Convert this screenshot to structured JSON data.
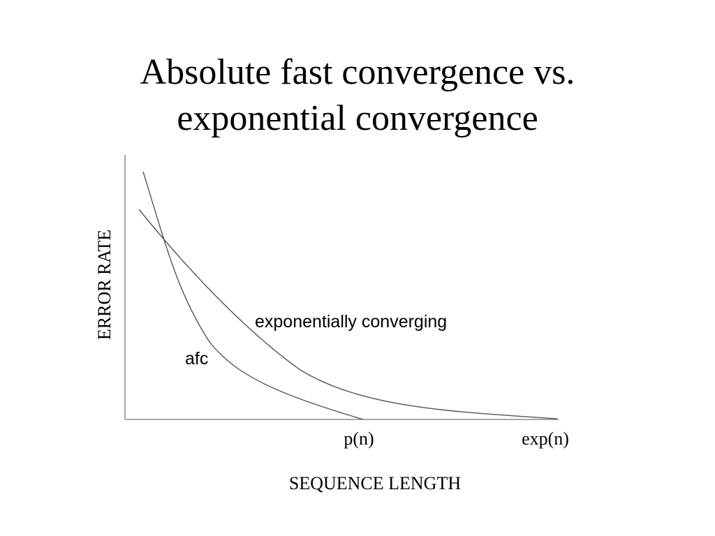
{
  "slide": {
    "title_line_1": "Absolute fast convergence vs.",
    "title_line_2": "exponential convergence"
  },
  "chart_data": {
    "type": "line",
    "ylabel": "ERROR RATE",
    "xlabel": "SEQUENCE LENGTH",
    "x_tick_labels": [
      "p(n)",
      "exp(n)"
    ],
    "series": [
      {
        "name": "afc",
        "shape": "rapid decay, reaching zero at p(n)"
      },
      {
        "name": "exponentially converging",
        "shape": "gradual decay, approaching zero at exp(n)"
      }
    ],
    "grid": false,
    "axis_color": "#8a8a8a",
    "curve_color": "#555555"
  }
}
